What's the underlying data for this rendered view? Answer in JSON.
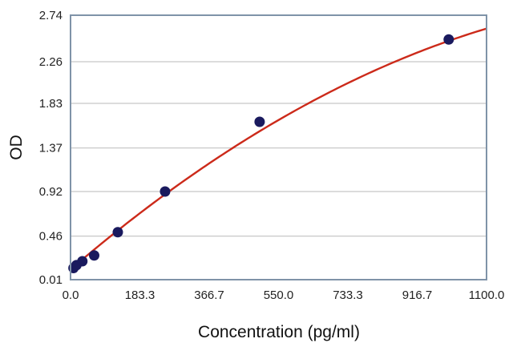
{
  "chart_data": {
    "type": "scatter",
    "title": "",
    "xlabel": "Concentration (pg/ml)",
    "ylabel": "OD",
    "xlim": [
      0,
      1100
    ],
    "ylim": [
      0.01,
      2.74
    ],
    "x_ticks": [
      "0.0",
      "183.3",
      "366.7",
      "550.0",
      "733.3",
      "916.7",
      "1100.0"
    ],
    "y_ticks": [
      "0.01",
      "0.46",
      "0.92",
      "1.37",
      "1.83",
      "2.26",
      "2.74"
    ],
    "grid": "horizontal",
    "series": [
      {
        "x": [
          7.8,
          15.6,
          31.25,
          62.5,
          125,
          250,
          500,
          1000
        ],
        "y": [
          0.13,
          0.16,
          0.2,
          0.26,
          0.5,
          0.92,
          1.64,
          2.49
        ]
      }
    ],
    "fit_curve": {
      "type": "quadratic",
      "coefficients": [
        0.115,
        0.00335,
        -9.9e-07
      ]
    },
    "colors": {
      "points": "#1a1a5e",
      "curve": "#cc2a1a",
      "frame": "#7f93a8",
      "grid": "#c8c8c8"
    }
  }
}
